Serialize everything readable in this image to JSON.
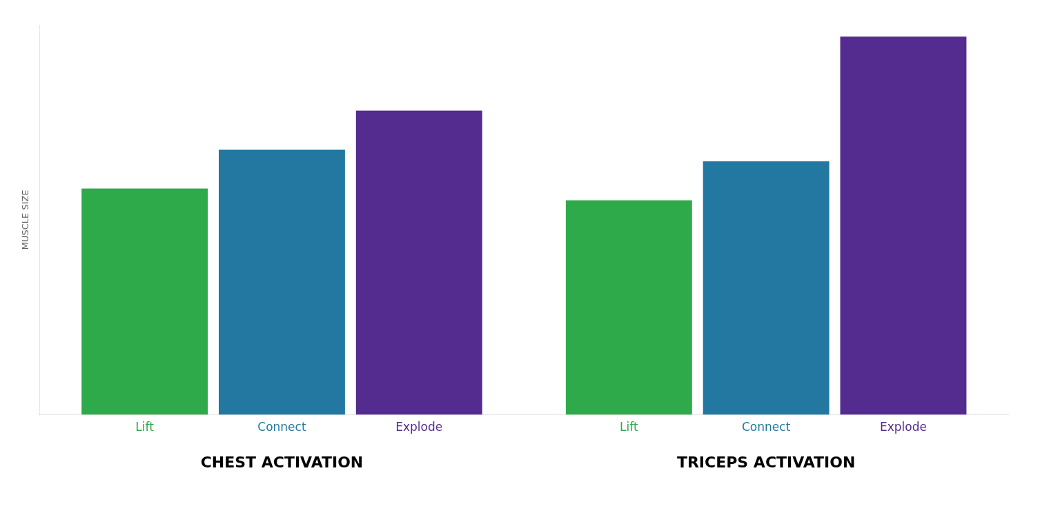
{
  "chart_data": {
    "type": "bar",
    "categories": [
      "CHEST ACTIVATION",
      "TRICEPS ACTIVATION"
    ],
    "series": [
      {
        "name": "Lift",
        "color": "#2eaa4a",
        "values": [
          0.58,
          0.55
        ]
      },
      {
        "name": "Connect",
        "color": "#2278a0",
        "values": [
          0.68,
          0.65
        ]
      },
      {
        "name": "Explode",
        "color": "#542b8e",
        "values": [
          0.78,
          0.97
        ]
      }
    ],
    "ylabel": "MUSCLE SIZE",
    "ylim": [
      0,
      1.0
    ],
    "grid": false,
    "tick_labels": "x"
  }
}
